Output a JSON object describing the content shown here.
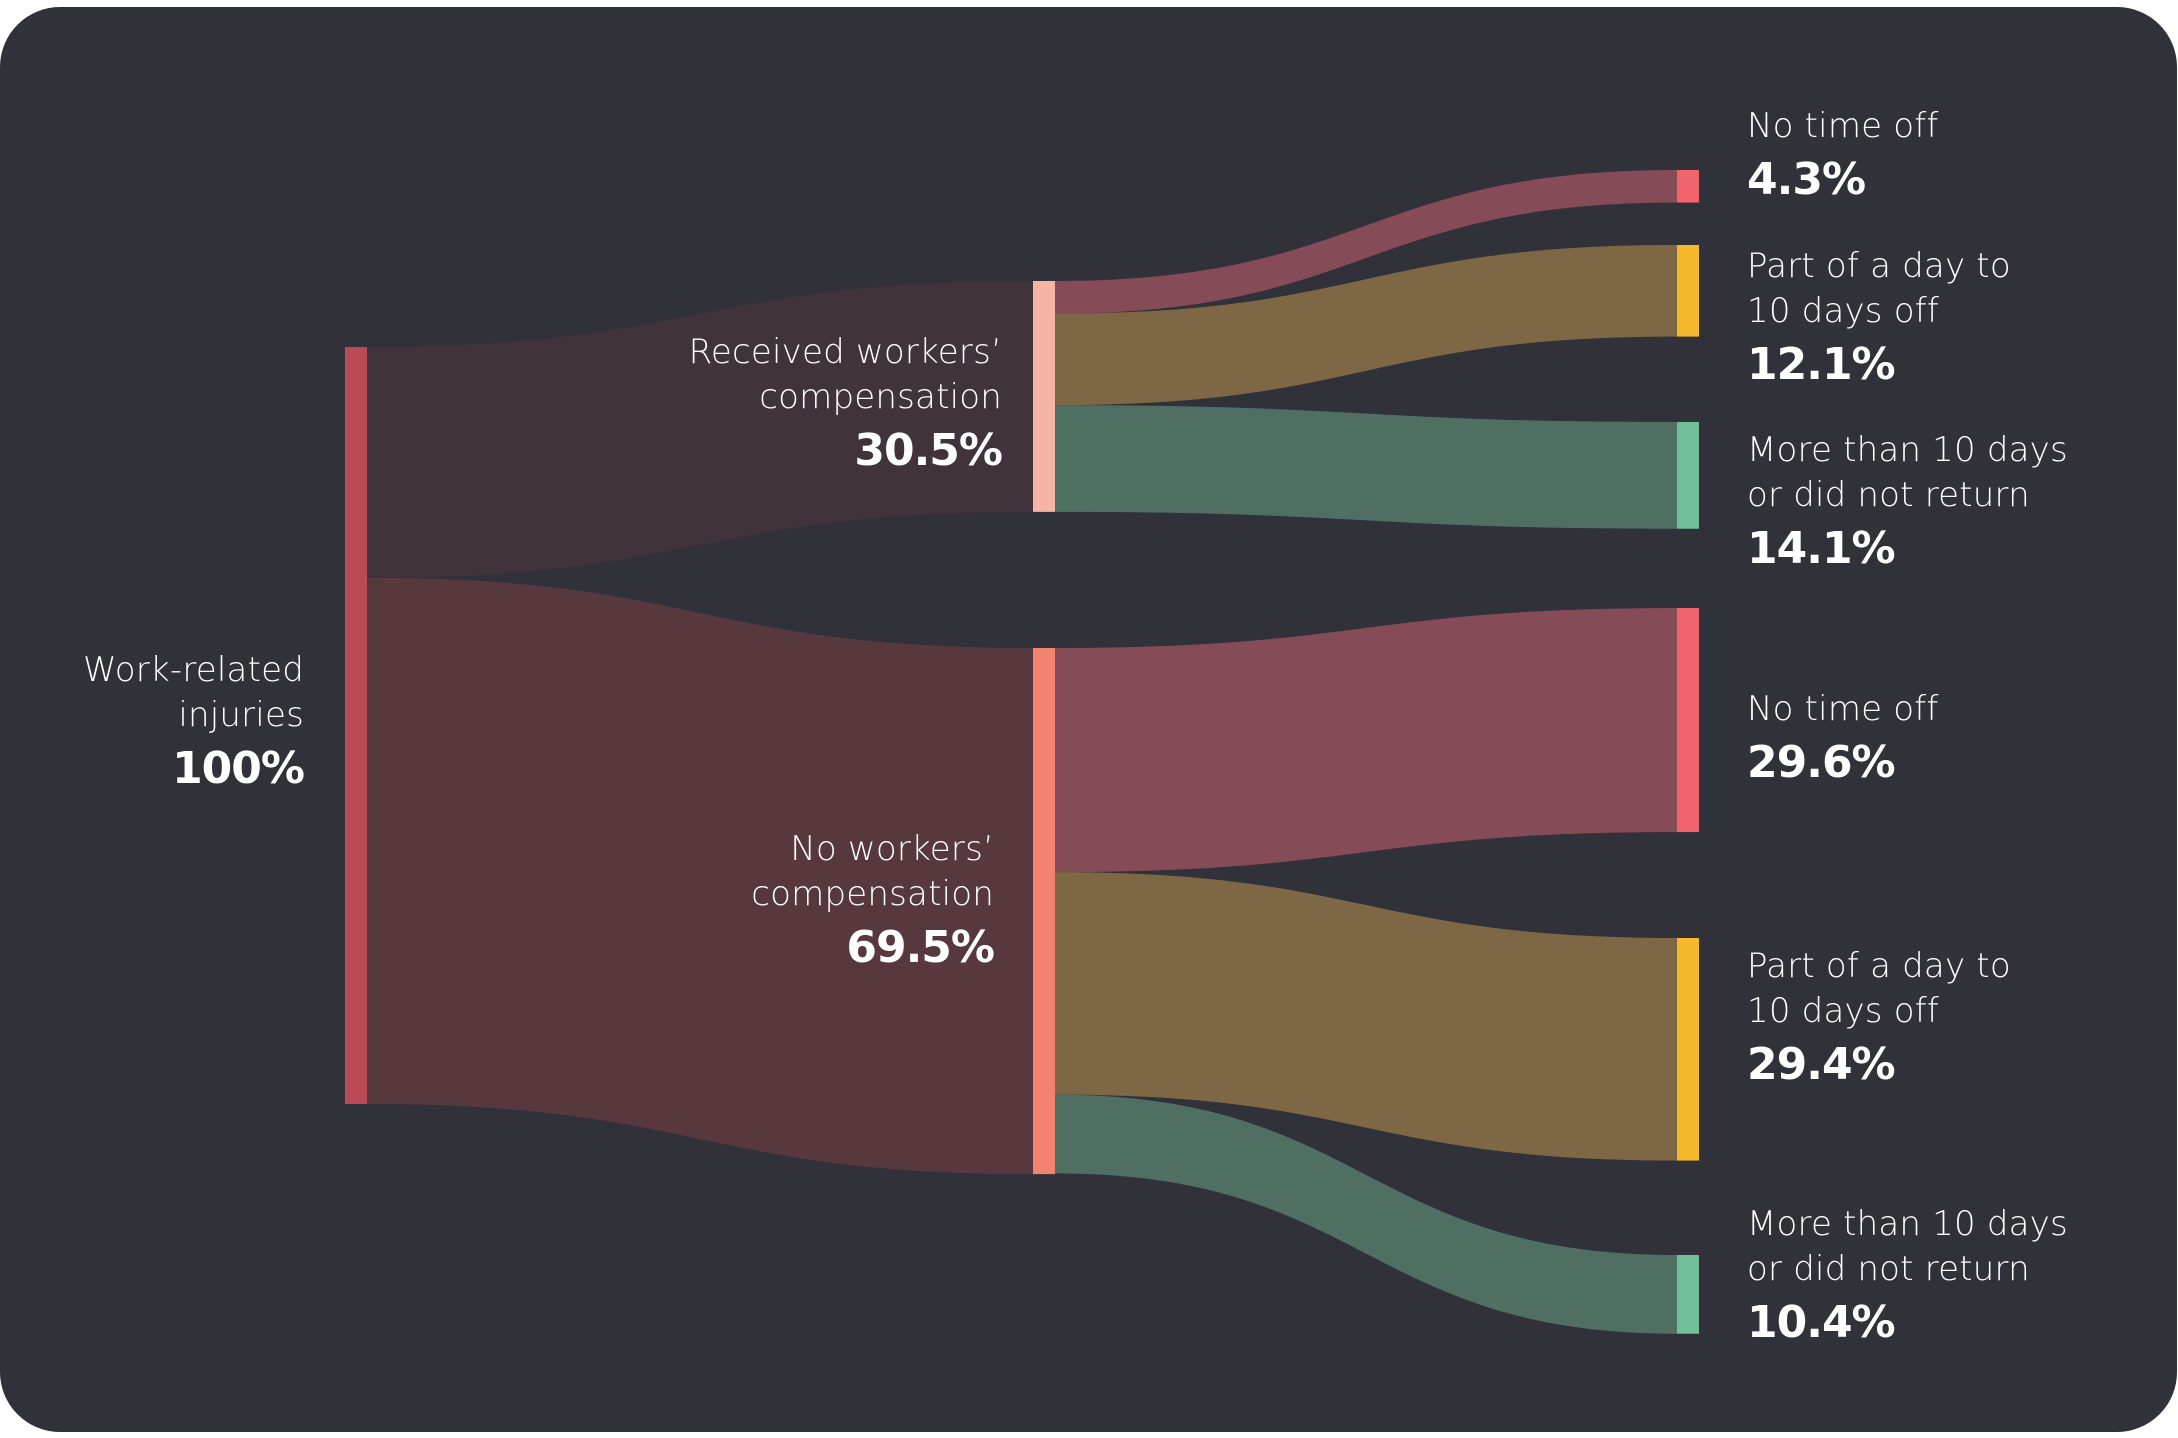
{
  "chart_data": {
    "type": "sankey",
    "title": "",
    "nodes": [
      {
        "id": "total",
        "label": "Work-related\ninjuries",
        "value_label": "100%",
        "value": 100,
        "color": "#b94a56",
        "column": 0
      },
      {
        "id": "received",
        "label": "Received workers’\ncompensation",
        "value_label": "30.5%",
        "value": 30.5,
        "color": "#f6b4a4",
        "column": 1
      },
      {
        "id": "nocomp",
        "label": "No workers’\ncompensation",
        "value_label": "69.5%",
        "value": 69.5,
        "color": "#f2846f",
        "column": 1
      },
      {
        "id": "r_none",
        "label": "No time off",
        "value_label": "4.3%",
        "value": 4.3,
        "color": "#f0646e",
        "column": 2
      },
      {
        "id": "r_part",
        "label": "Part of a day to\n10 days off",
        "value_label": "12.1%",
        "value": 12.1,
        "color": "#f4b92c",
        "column": 2
      },
      {
        "id": "r_more",
        "label": "More than 10 days\nor did not return",
        "value_label": "14.1%",
        "value": 14.1,
        "color": "#72c097",
        "column": 2
      },
      {
        "id": "n_none",
        "label": "No time off",
        "value_label": "29.6%",
        "value": 29.6,
        "color": "#f0646e",
        "column": 2
      },
      {
        "id": "n_part",
        "label": "Part of a day to\n10 days off",
        "value_label": "29.4%",
        "value": 29.4,
        "color": "#f4b92c",
        "column": 2
      },
      {
        "id": "n_more",
        "label": "More than 10 days\nor did not return",
        "value_label": "10.4%",
        "value": 10.4,
        "color": "#72c097",
        "column": 2
      }
    ],
    "links": [
      {
        "source": "total",
        "target": "received",
        "value": 30.5,
        "color": "#41333b"
      },
      {
        "source": "total",
        "target": "nocomp",
        "value": 69.5,
        "color": "#57393d"
      },
      {
        "source": "received",
        "target": "r_none",
        "value": 4.3,
        "color": "#854b57"
      },
      {
        "source": "received",
        "target": "r_part",
        "value": 12.1,
        "color": "#7e6744"
      },
      {
        "source": "received",
        "target": "r_more",
        "value": 14.1,
        "color": "#4f6f63"
      },
      {
        "source": "nocomp",
        "target": "n_none",
        "value": 29.6,
        "color": "#854b57"
      },
      {
        "source": "nocomp",
        "target": "n_part",
        "value": 29.4,
        "color": "#7e6744"
      },
      {
        "source": "nocomp",
        "target": "n_more",
        "value": 10.4,
        "color": "#4f6f63"
      }
    ]
  },
  "theme": {
    "background": "#31313a",
    "text": "#ffffff"
  }
}
